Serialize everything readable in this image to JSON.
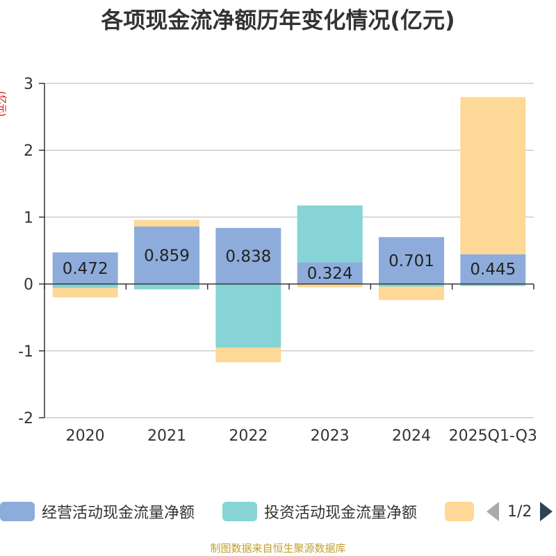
{
  "title": "各项现金流净额历年变化情况(亿元)",
  "source": "制图数据来自恒生聚源数据库",
  "legend_page": "1/2",
  "colors": {
    "operating": "#8eacdb",
    "investing": "#86d4d6",
    "financing": "#fdd896"
  },
  "chart_data": {
    "type": "bar",
    "stacked": true,
    "title": "各项现金流净额历年变化情况(亿元)",
    "ylabel": "(亿元)",
    "ylim": [
      -2,
      3
    ],
    "yticks": [
      3,
      2,
      1,
      0,
      -1,
      -2
    ],
    "categories": [
      "2020",
      "2021",
      "2022",
      "2023",
      "2024",
      "2025Q1-Q3"
    ],
    "series": [
      {
        "name": "经营活动现金流量净额",
        "color": "#8eacdb",
        "values": [
          0.472,
          0.859,
          0.838,
          0.324,
          0.701,
          0.445
        ],
        "labels": [
          "0.472",
          "0.859",
          "0.838",
          "0.324",
          "0.701",
          "0.445"
        ]
      },
      {
        "name": "投资活动现金流量净额",
        "color": "#86d4d6",
        "values": [
          -0.06,
          -0.08,
          -0.95,
          0.85,
          -0.04,
          -0.03
        ]
      },
      {
        "name": "",
        "color": "#fdd896",
        "values": [
          -0.14,
          0.1,
          -0.22,
          -0.05,
          -0.2,
          2.35
        ]
      }
    ]
  }
}
